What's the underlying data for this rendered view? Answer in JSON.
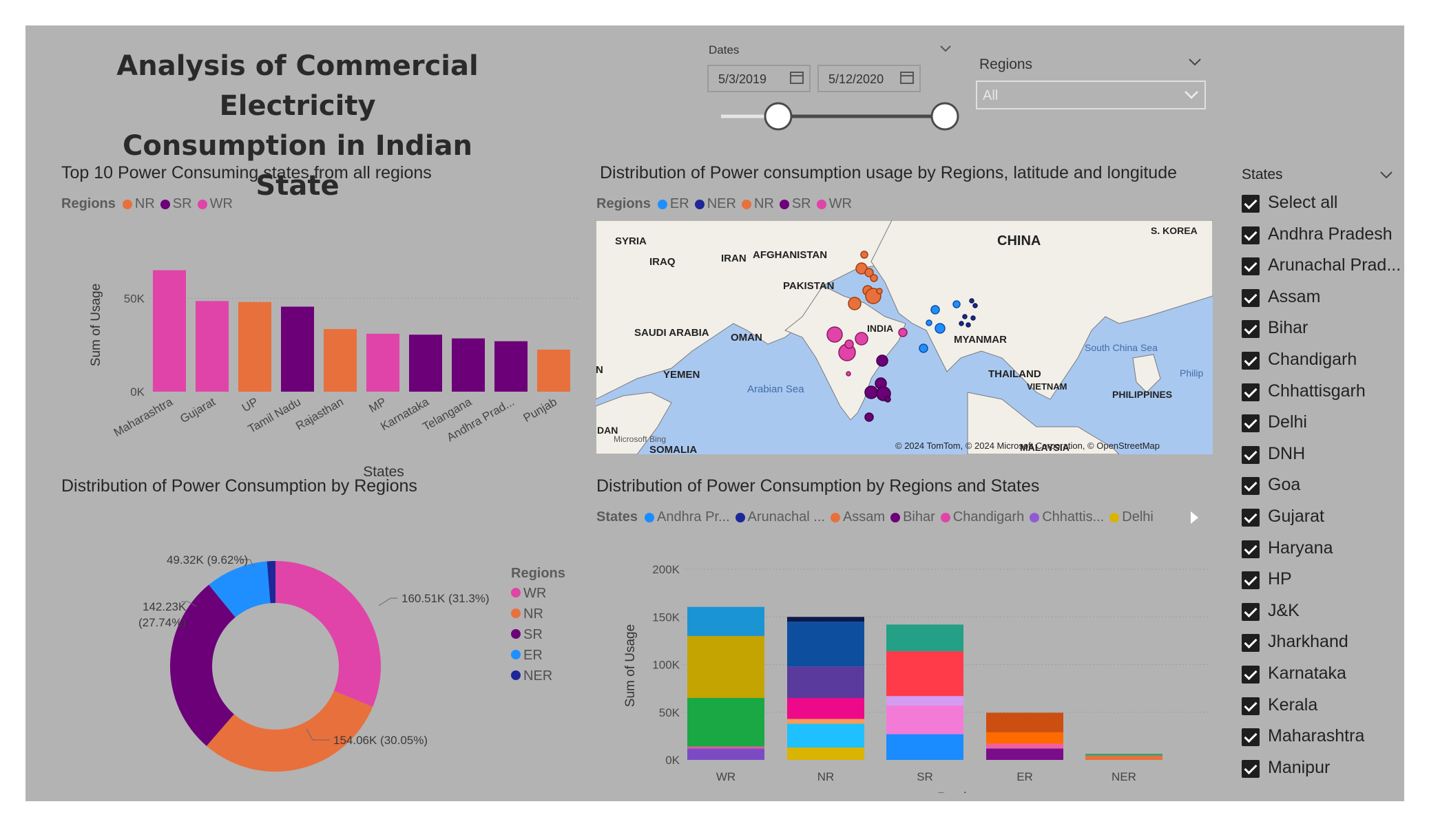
{
  "report": {
    "title_line1": "Analysis of Commercial Electricity",
    "title_line2": "Consumption in Indian State"
  },
  "filters": {
    "dates_label": "Dates",
    "start_date": "5/3/2019",
    "end_date": "5/12/2020",
    "slider_start_fraction": 0,
    "slider_end_fraction": 1,
    "regions_label": "Regions",
    "regions_value": "All"
  },
  "states_slicer": {
    "label": "States",
    "items": [
      "Select all",
      "Andhra Pradesh",
      "Arunachal Prad...",
      "Assam",
      "Bihar",
      "Chandigarh",
      "Chhattisgarh",
      "Delhi",
      "DNH",
      "Goa",
      "Gujarat",
      "Haryana",
      "HP",
      "J&K",
      "Jharkhand",
      "Karnataka",
      "Kerala",
      "Maharashtra",
      "Manipur"
    ]
  },
  "colors": {
    "WR": "#e044a8",
    "NR": "#e8703c",
    "SR": "#6b0078",
    "ER": "#1f8fff",
    "NER": "#1d2799",
    "background": "#b3b3b3"
  },
  "bar_chart": {
    "title": "Top 10 Power Consuming states from all regions",
    "legend_title": "Regions",
    "legend": [
      "NR",
      "SR",
      "WR"
    ]
  },
  "map": {
    "title": "Distribution of Power consumption usage by Regions, latitude and longitude",
    "legend_title": "Regions",
    "legend": [
      "ER",
      "NER",
      "NR",
      "SR",
      "WR"
    ],
    "labels": [
      "SYRIA",
      "IRAQ",
      "IRAN",
      "AFGHANISTAN",
      "PAKISTAN",
      "CHINA",
      "S. KOREA",
      "SAUDI ARABIA",
      "OMAN",
      "INDIA",
      "MYANMAR",
      "YEMEN",
      "Arabian Sea",
      "THAILAND",
      "VIETNAM",
      "South China Sea",
      "PHILIPPINES",
      "Philip",
      "SOMALIA",
      "DAN",
      "N",
      "MALAYSIA"
    ],
    "attribution": "© 2024 TomTom, © 2024 Microsoft Corporation, © OpenStreetMap",
    "bing": "Microsoft Bing"
  },
  "donut": {
    "title": "Distribution of Power Consumption by Regions",
    "legend_title": "Regions",
    "labels": {
      "WR": "160.51K (31.3%)",
      "NR": "154.06K (30.05%)",
      "SR_line1": "142.23K",
      "SR_line2": "(27.74%)",
      "ER": "49.32K (9.62%)"
    }
  },
  "stacked": {
    "title": "Distribution of Power Consumption by Regions and States",
    "legend_title": "States",
    "legend": [
      "Andhra Pr...",
      "Arunachal ...",
      "Assam",
      "Bihar",
      "Chandigarh",
      "Chhattis...",
      "Delhi"
    ]
  },
  "chart_data": [
    {
      "type": "bar",
      "title": "Top 10 Power Consuming states from all regions",
      "xlabel": "States",
      "ylabel": "Sum of Usage",
      "categories": [
        "Maharashtra",
        "Gujarat",
        "UP",
        "Tamil Nadu",
        "Rajasthan",
        "MP",
        "Karnataka",
        "Telangana",
        "Andhra Prad...",
        "Punjab"
      ],
      "values": [
        65000,
        48500,
        48000,
        45500,
        33500,
        31000,
        30500,
        28500,
        27000,
        22500
      ],
      "region": [
        "WR",
        "WR",
        "NR",
        "SR",
        "NR",
        "WR",
        "SR",
        "SR",
        "SR",
        "NR"
      ],
      "yticks": [
        "0K",
        "50K"
      ],
      "ylim": [
        0,
        70000
      ]
    },
    {
      "type": "pie",
      "title": "Distribution of Power Consumption by Regions",
      "categories": [
        "WR",
        "NR",
        "SR",
        "ER",
        "NER"
      ],
      "values": [
        160.51,
        154.06,
        142.23,
        49.32,
        6.6
      ],
      "percent": [
        31.3,
        30.05,
        27.74,
        9.62,
        1.29
      ],
      "units": "K"
    },
    {
      "type": "bar",
      "stacked": true,
      "title": "Distribution of Power Consumption by Regions and States",
      "xlabel": "Regions",
      "ylabel": "Sum of Usage",
      "categories": [
        "WR",
        "NR",
        "SR",
        "ER",
        "NER"
      ],
      "yticks": [
        "0K",
        "50K",
        "100K",
        "150K",
        "200K"
      ],
      "ylim": [
        0,
        200000
      ],
      "stacks": [
        [
          {
            "color": "#7c4bc4",
            "value": 12000
          },
          {
            "color": "#e85a9c",
            "value": 2000
          },
          {
            "color": "#1aa845",
            "value": 51000
          },
          {
            "color": "#c4a400",
            "value": 65000
          },
          {
            "color": "#1b94d4",
            "value": 30500
          }
        ],
        [
          {
            "color": "#d9b400",
            "value": 13000
          },
          {
            "color": "#1ec0ff",
            "value": 25000
          },
          {
            "color": "#ff9a52",
            "value": 5000
          },
          {
            "color": "#ec0a8a",
            "value": 22000
          },
          {
            "color": "#5a3a9c",
            "value": 33000
          },
          {
            "color": "#0d4f9e",
            "value": 47000
          },
          {
            "color": "#0b1a4d",
            "value": 5000
          }
        ],
        [
          {
            "color": "#1b8cff",
            "value": 27000
          },
          {
            "color": "#f47ad8",
            "value": 30000
          },
          {
            "color": "#d49cf0",
            "value": 10000
          },
          {
            "color": "#ff3b4a",
            "value": 47000
          },
          {
            "color": "#23a085",
            "value": 28000
          }
        ],
        [
          {
            "color": "#7a0d8a",
            "value": 12000
          },
          {
            "color": "#f060a0",
            "value": 5000
          },
          {
            "color": "#ff6a00",
            "value": 12000
          },
          {
            "color": "#cc4e10",
            "value": 20500
          }
        ],
        [
          {
            "color": "#e8703c",
            "value": 4500
          },
          {
            "color": "#3aa070",
            "value": 2000
          }
        ]
      ]
    }
  ]
}
